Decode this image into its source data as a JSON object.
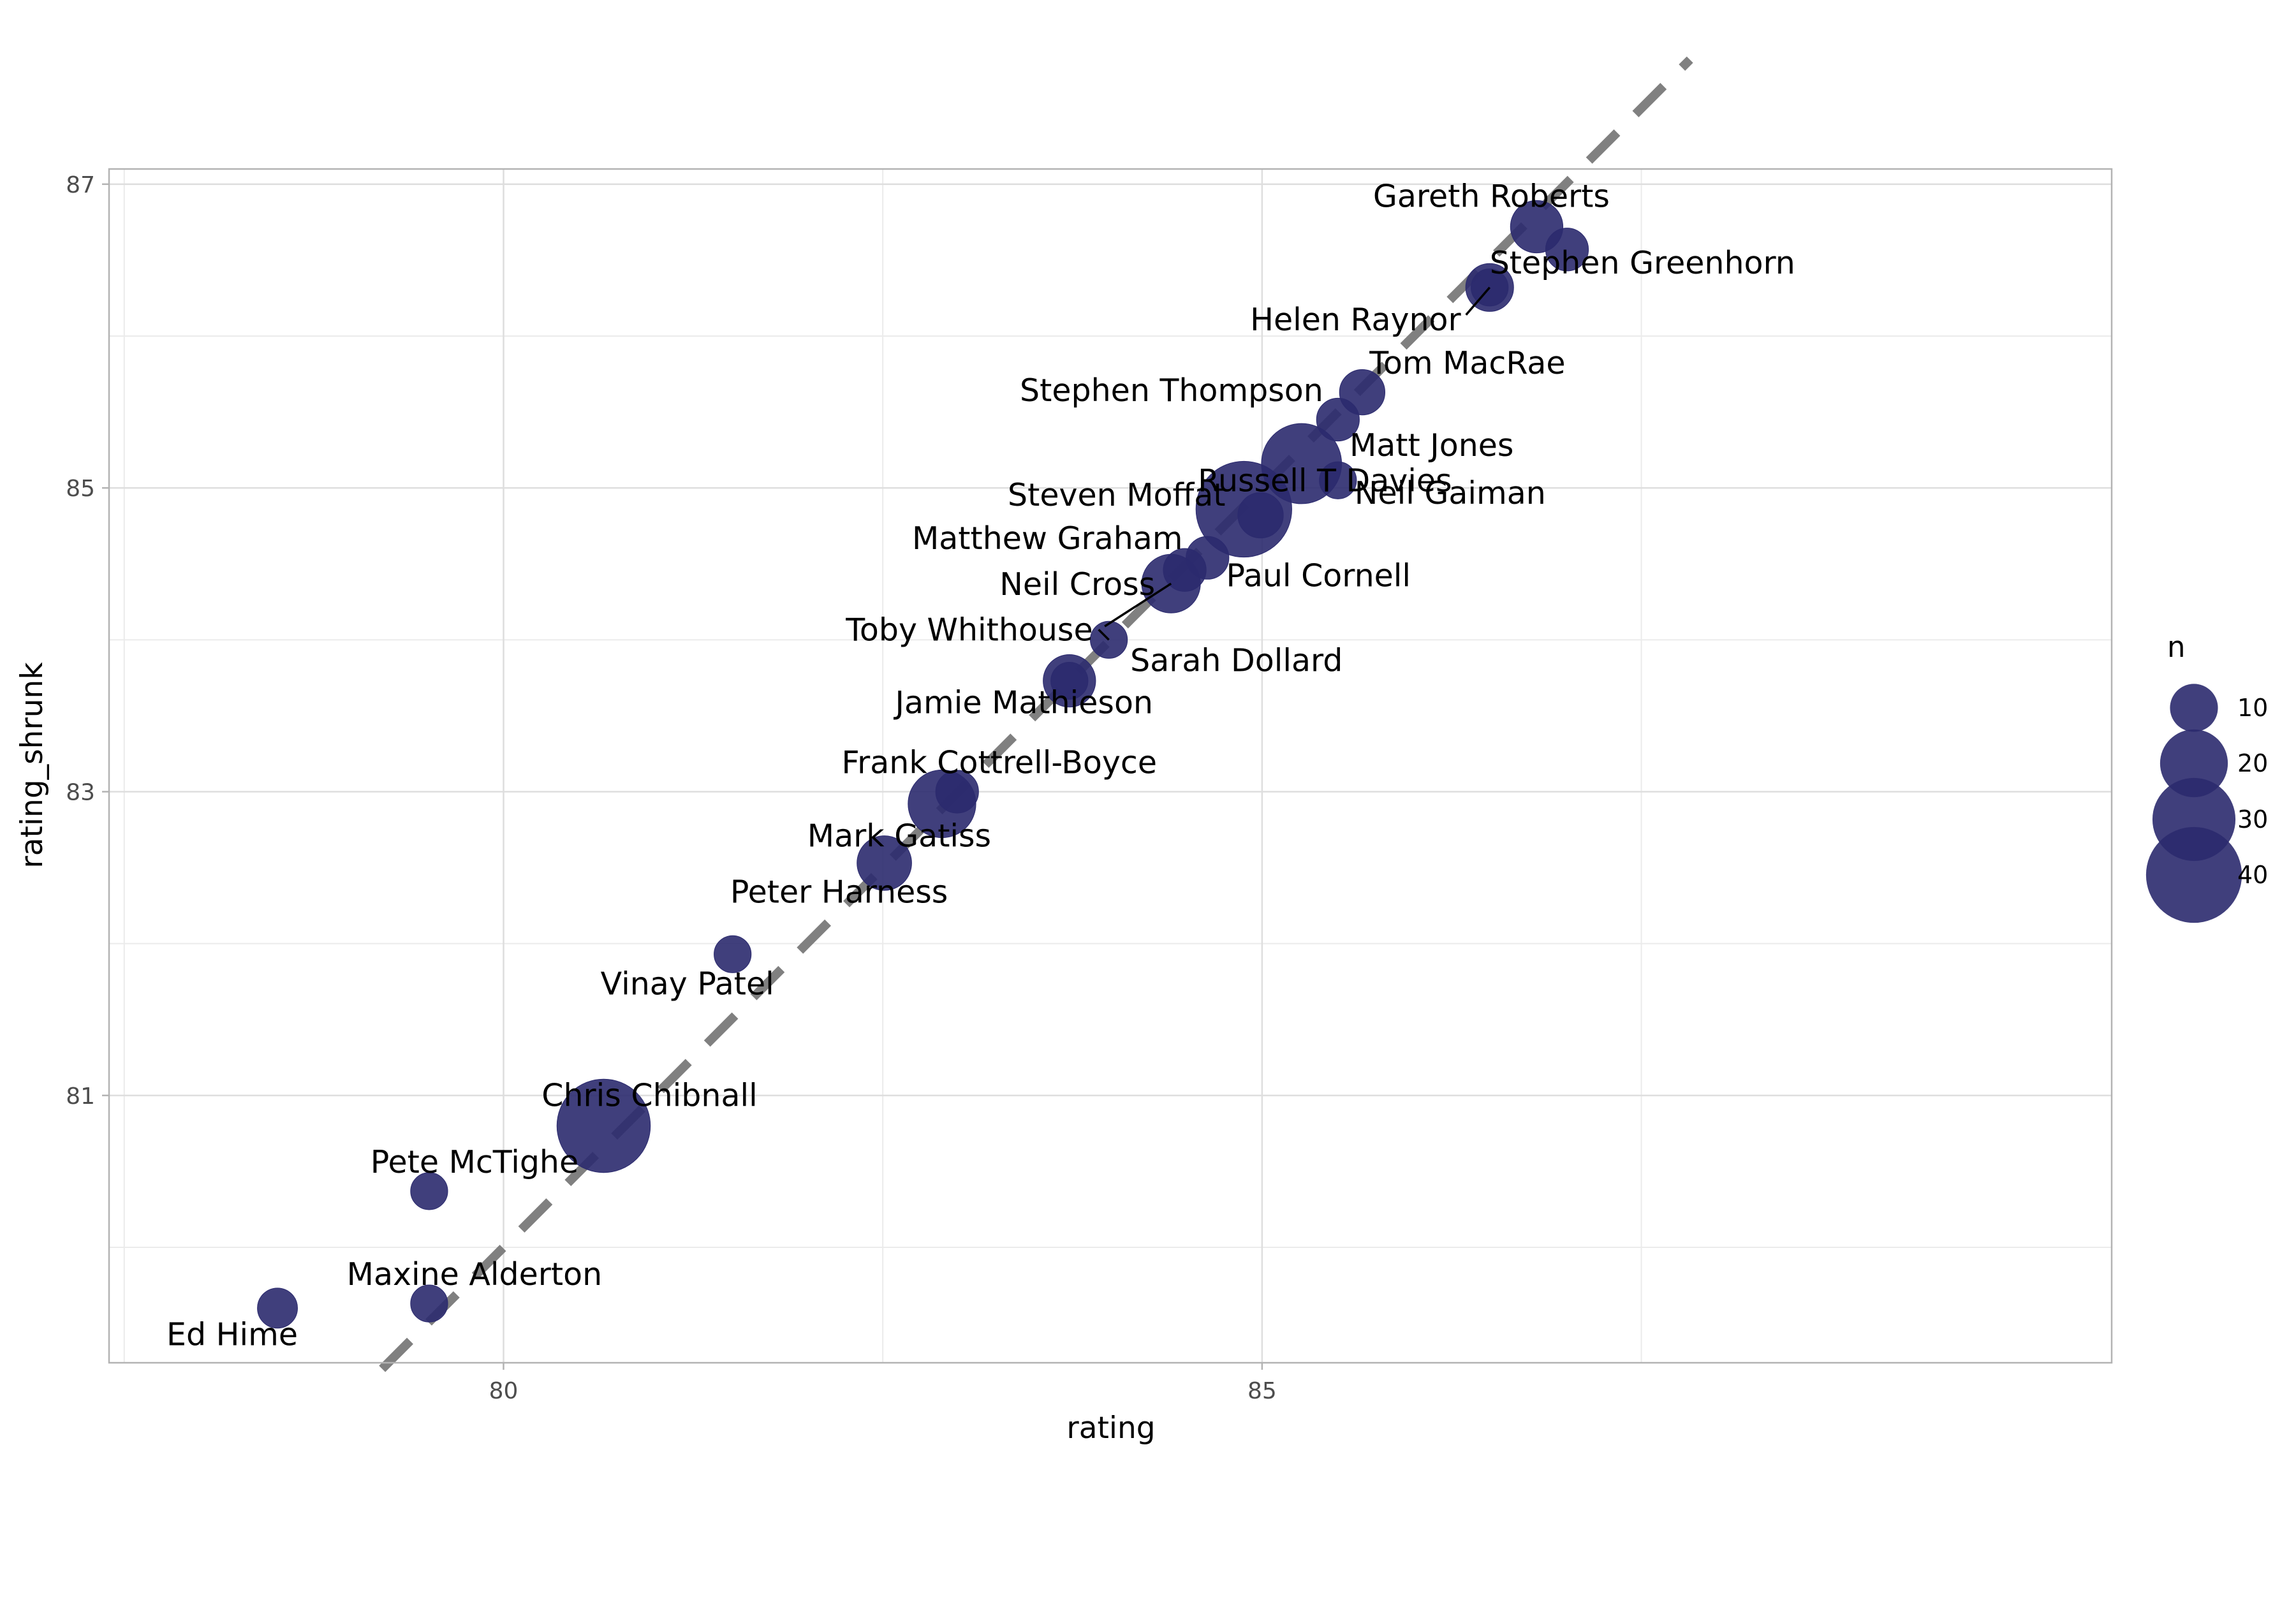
{
  "chart_data": {
    "type": "scatter",
    "xlabel": "rating",
    "ylabel": "rating_shrunk",
    "xlim": [
      77.4,
      90.6
    ],
    "ylim": [
      79.24,
      87.1
    ],
    "x_ticks": [
      80,
      85
    ],
    "y_ticks": [
      81,
      83,
      85,
      87
    ],
    "grid": true,
    "reference_line": {
      "slope": 1,
      "intercept": 0,
      "style": "dashed",
      "color": "#808080"
    },
    "point_color": "#2b2a6e",
    "size_legend": {
      "title": "n",
      "position": "right",
      "entries": [
        {
          "label": "10",
          "value": 10
        },
        {
          "label": "20",
          "value": 20
        },
        {
          "label": "30",
          "value": 30
        },
        {
          "label": "40",
          "value": 40
        }
      ]
    },
    "points": [
      {
        "label": "Gareth Roberts",
        "x": 86.81,
        "y": 86.72,
        "n": 12
      },
      {
        "label": "",
        "x": 87.01,
        "y": 86.57,
        "n": 8
      },
      {
        "label": "Stephen Greenhorn",
        "x": 86.5,
        "y": 86.32,
        "n": 10
      },
      {
        "label": "Helen Raynor",
        "x": 86.5,
        "y": 86.32,
        "n": 6
      },
      {
        "label": "Tom MacRae",
        "x": 85.66,
        "y": 85.63,
        "n": 9
      },
      {
        "label": "Stephen Thompson",
        "x": 85.5,
        "y": 85.45,
        "n": 8
      },
      {
        "label": "Matt Jones",
        "x": 85.26,
        "y": 85.16,
        "n": 28
      },
      {
        "label": "Neil Gaiman",
        "x": 85.5,
        "y": 85.05,
        "n": 6
      },
      {
        "label": "Russell T Davies",
        "x": 84.88,
        "y": 84.86,
        "n": 40
      },
      {
        "label": "Steven Moffat",
        "x": 84.99,
        "y": 84.82,
        "n": 9
      },
      {
        "label": "Paul Cornell",
        "x": 84.64,
        "y": 84.54,
        "n": 8
      },
      {
        "label": "Matthew Graham",
        "x": 84.49,
        "y": 84.46,
        "n": 8
      },
      {
        "label": "Neil Cross",
        "x": 84.4,
        "y": 84.37,
        "n": 15
      },
      {
        "label": "Toby Whithouse",
        "x": 83.99,
        "y": 84.0,
        "n": 6
      },
      {
        "label": "Sarah Dollard",
        "x": 83.73,
        "y": 83.73,
        "n": 12
      },
      {
        "label": "Jamie Mathieson",
        "x": 83.73,
        "y": 83.73,
        "n": 6
      },
      {
        "label": "Frank Cottrell-Boyce",
        "x": 82.99,
        "y": 83.0,
        "n": 8
      },
      {
        "label": "Mark Gatiss",
        "x": 82.89,
        "y": 82.92,
        "n": 20
      },
      {
        "label": "Peter Harness",
        "x": 82.51,
        "y": 82.53,
        "n": 13
      },
      {
        "label": "Vinay Patel",
        "x": 81.51,
        "y": 81.93,
        "n": 6
      },
      {
        "label": "Chris Chibnall",
        "x": 80.66,
        "y": 80.8,
        "n": 38
      },
      {
        "label": "Pete McTighe",
        "x": 79.51,
        "y": 80.37,
        "n": 6
      },
      {
        "label": "Maxine Alderton",
        "x": 79.51,
        "y": 79.63,
        "n": 6
      },
      {
        "label": "Ed Hime",
        "x": 78.51,
        "y": 79.6,
        "n": 7
      }
    ]
  }
}
